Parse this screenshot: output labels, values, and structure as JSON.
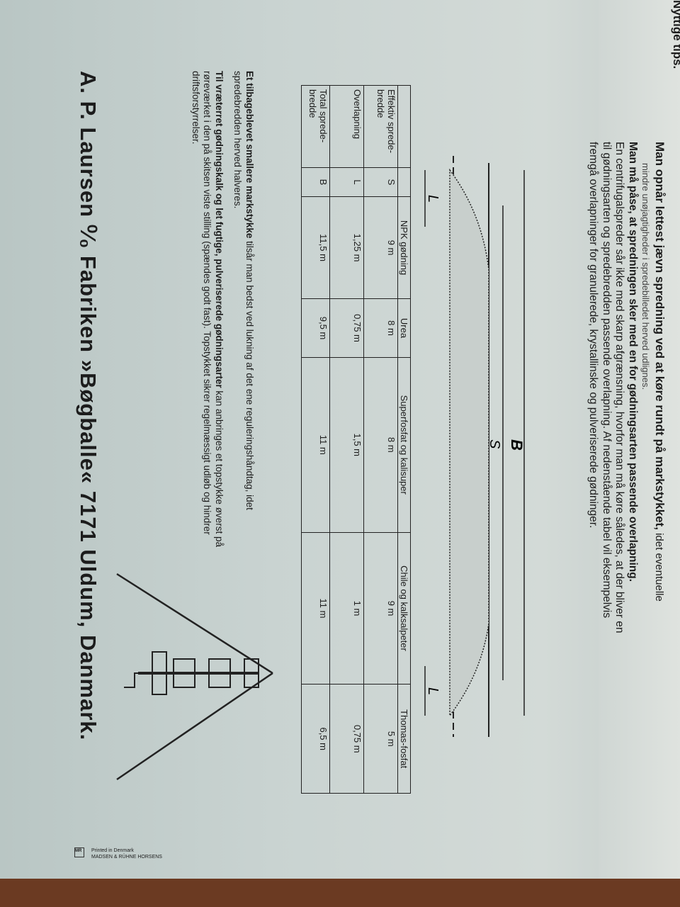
{
  "heading": "Nyttige tips.",
  "intro": {
    "lead": "Man opnår lettest jævn spredning ved at køre rundt på markstykket,",
    "lead_rest": " idet eventuelle",
    "small": "mindre unøjagtigheder i spredebilledet herved udlignes.",
    "bold": "Man må påse, at spredningen sker med en for gødningsarten passende overlapning.",
    "body": "En centrifugalspreder sår ikke med skarp afgrænsning, hvorfor man må køre således, at der bliver en til gødningsarten og spredebredden passende overlapning. Af nedenstående tabel vil eksempelvis fremgå overlapninger for granulerede, krystallinske og pulveriserede gødninger."
  },
  "diagram": {
    "label_b": "B",
    "label_s": "S",
    "label_l1": "L",
    "label_l2": "L"
  },
  "table": {
    "columns": [
      "NPK gødning",
      "Urea",
      "Superfosfat og kalisuper",
      "Chile og kalksalpeter",
      "Thomas-fosfat"
    ],
    "rows": [
      {
        "label": "Effektiv sprede-bredde",
        "symbol": "S",
        "values": [
          "9 m",
          "8 m",
          "8 m",
          "9 m",
          "5 m"
        ]
      },
      {
        "label": "Overlapning",
        "symbol": "L",
        "values": [
          "1,25 m",
          "0,75 m",
          "1,5 m",
          "1 m",
          "0,75 m"
        ]
      },
      {
        "label": "Total sprede-bredde",
        "symbol": "B",
        "values": [
          "11,5 m",
          "9,5 m",
          "11 m",
          "11 m",
          "6,5 m"
        ]
      }
    ]
  },
  "lower": {
    "p1_bold": "Et tilbageblevet smallere markstykke",
    "p1": " tilsår man bedst ved lukning af det ene reguleringshåndtag, idet spredebredden herved halveres.",
    "p2_bold": "Til vræterret gødningskalk og let fugtige, pulveriserede gødningsarter",
    "p2": " kan anbringes et topstykke øverst på røreværket i den på skitsen viste stilling (spændes godt fast). Topstykket sikrer regelmæssigt udløb og hindrer driftsforstyrrelser."
  },
  "company": "A. P. Laursen ⁰⁄₀ Fabriken »Bøgballe« 7171 Uldum, Danmark.",
  "footer": {
    "logo": "MR",
    "line1": "Printed in Denmark",
    "line2": "MADSEN & RÜHNE  HORSENS"
  },
  "colors": {
    "paper": "#c9d3d1",
    "wood": "#6b3a22",
    "ink": "#1c1c1c"
  }
}
